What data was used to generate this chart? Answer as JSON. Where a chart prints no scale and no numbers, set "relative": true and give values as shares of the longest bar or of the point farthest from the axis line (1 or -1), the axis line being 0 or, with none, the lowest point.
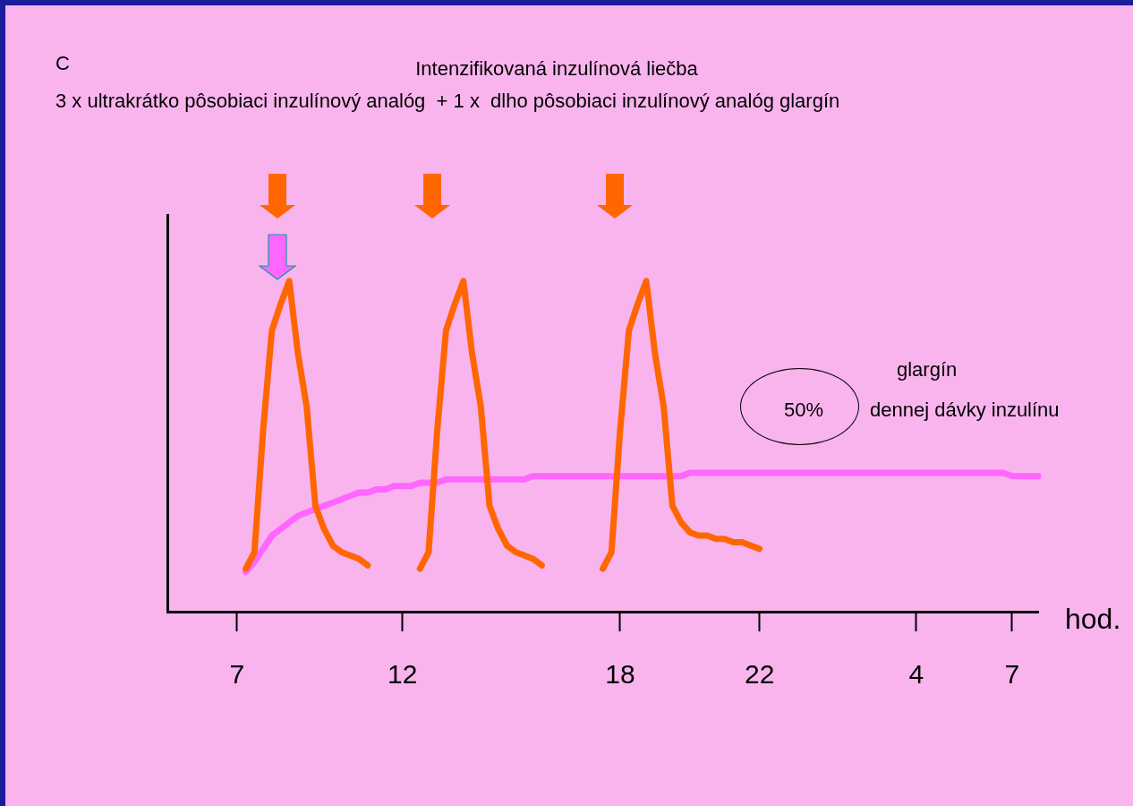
{
  "chart_data": {
    "type": "line",
    "relative": true,
    "title": "Intenzifikovaná inzulínová liečba",
    "subtitle": "3 x ultrakrátko pôsobiaci inzulínový analóg  + 1 x  dlho pôsobiaci inzulínový analóg glargín",
    "xlabel": "hod.",
    "annotations": [
      "C",
      "glargín",
      "50%",
      "dennej dávky inzulínu"
    ],
    "categories": [
      null,
      null,
      null,
      null,
      null,
      null,
      null,
      null,
      "7",
      null,
      null,
      null,
      null,
      null,
      null,
      null,
      null,
      null,
      null,
      null,
      null,
      null,
      null,
      null,
      null,
      null,
      null,
      "12",
      null,
      null,
      null,
      null,
      null,
      null,
      null,
      null,
      null,
      null,
      null,
      null,
      null,
      null,
      null,
      null,
      null,
      null,
      null,
      null,
      null,
      null,
      null,
      null,
      "18",
      null,
      null,
      null,
      null,
      null,
      null,
      null,
      null,
      null,
      null,
      null,
      null,
      null,
      null,
      null,
      "22",
      null,
      null,
      null,
      null,
      null,
      null,
      null,
      null,
      null,
      null,
      null,
      null,
      null,
      null,
      null,
      null,
      null,
      "4",
      null,
      null,
      null,
      null,
      null,
      null,
      null,
      null,
      null,
      null,
      "7",
      null,
      null,
      null
    ],
    "grid": false,
    "legend": false,
    "marker": "none",
    "line_style": "solid",
    "series": [
      {
        "color": "#ff6600",
        "values": [
          null,
          null,
          null,
          null,
          null,
          null,
          null,
          null,
          null,
          0.13,
          0.18,
          0.55,
          0.85,
          0.93,
          1,
          0.78,
          0.62,
          0.32,
          0.25,
          0.2,
          0.18,
          0.17,
          0.16,
          0.14,
          null,
          null,
          null,
          null,
          null,
          null,
          null,
          null,
          null,
          null,
          null,
          null,
          null,
          null,
          null,
          null,
          null,
          null,
          null,
          null,
          null,
          null,
          null,
          null,
          null,
          null,
          null,
          null,
          null,
          null,
          null,
          null,
          null,
          null,
          null,
          null,
          null,
          null,
          null,
          null,
          null,
          null,
          null,
          null,
          null,
          null,
          null,
          null,
          null,
          null,
          null,
          null,
          null,
          null,
          null,
          null,
          null,
          null,
          null,
          null,
          null,
          null,
          null,
          null,
          null,
          null,
          null,
          null,
          null,
          null,
          null,
          null,
          null,
          null,
          null,
          null,
          null
        ]
      },
      {
        "color": "#ff6600",
        "values": [
          null,
          null,
          null,
          null,
          null,
          null,
          null,
          null,
          null,
          null,
          null,
          null,
          null,
          null,
          null,
          null,
          null,
          null,
          null,
          null,
          null,
          null,
          null,
          null,
          null,
          null,
          null,
          null,
          null,
          0.13,
          0.18,
          0.55,
          0.85,
          0.93,
          1,
          0.78,
          0.62,
          0.32,
          0.25,
          0.2,
          0.18,
          0.17,
          0.16,
          0.14,
          null,
          null,
          null,
          null,
          null,
          null,
          null,
          null,
          null,
          null,
          null,
          null,
          null,
          null,
          null,
          null,
          null,
          null,
          null,
          null,
          null,
          null,
          null,
          null,
          null,
          null,
          null,
          null,
          null,
          null,
          null,
          null,
          null,
          null,
          null,
          null,
          null,
          null,
          null,
          null,
          null,
          null,
          null,
          null,
          null,
          null,
          null,
          null,
          null,
          null,
          null,
          null,
          null,
          null,
          null,
          null,
          null
        ]
      },
      {
        "color": "#ff6600",
        "values": [
          null,
          null,
          null,
          null,
          null,
          null,
          null,
          null,
          null,
          null,
          null,
          null,
          null,
          null,
          null,
          null,
          null,
          null,
          null,
          null,
          null,
          null,
          null,
          null,
          null,
          null,
          null,
          null,
          null,
          null,
          null,
          null,
          null,
          null,
          null,
          null,
          null,
          null,
          null,
          null,
          null,
          null,
          null,
          null,
          null,
          null,
          null,
          null,
          null,
          null,
          0.13,
          0.18,
          0.55,
          0.85,
          0.93,
          1,
          0.78,
          0.62,
          0.32,
          0.27,
          0.24,
          0.23,
          0.23,
          0.22,
          0.22,
          0.21,
          0.21,
          0.2,
          0.19,
          null,
          null,
          null,
          null,
          null,
          null,
          null,
          null,
          null,
          null,
          null,
          null,
          null,
          null,
          null,
          null,
          null,
          null,
          null,
          null,
          null,
          null,
          null,
          null,
          null,
          null,
          null,
          null,
          null,
          null,
          null,
          null
        ]
      },
      {
        "color": "#ff66ff",
        "values": [
          null,
          null,
          null,
          null,
          null,
          null,
          null,
          null,
          null,
          0.12,
          0.15,
          0.19,
          0.23,
          0.25,
          0.27,
          0.29,
          0.3,
          0.31,
          0.32,
          0.33,
          0.34,
          0.35,
          0.36,
          0.36,
          0.37,
          0.37,
          0.38,
          0.38,
          0.38,
          0.39,
          0.39,
          0.39,
          0.4,
          0.4,
          0.4,
          0.4,
          0.4,
          0.4,
          0.4,
          0.4,
          0.4,
          0.4,
          0.41,
          0.41,
          0.41,
          0.41,
          0.41,
          0.41,
          0.41,
          0.41,
          0.41,
          0.41,
          0.41,
          0.41,
          0.41,
          0.41,
          0.41,
          0.41,
          0.41,
          0.41,
          0.42,
          0.42,
          0.42,
          0.42,
          0.42,
          0.42,
          0.42,
          0.42,
          0.42,
          0.42,
          0.42,
          0.42,
          0.42,
          0.42,
          0.42,
          0.42,
          0.42,
          0.42,
          0.42,
          0.42,
          0.42,
          0.42,
          0.42,
          0.42,
          0.42,
          0.42,
          0.42,
          0.42,
          0.42,
          0.42,
          0.42,
          0.42,
          0.42,
          0.42,
          0.42,
          0.42,
          0.42,
          0.41,
          0.41,
          0.41,
          0.41
        ]
      }
    ]
  }
}
